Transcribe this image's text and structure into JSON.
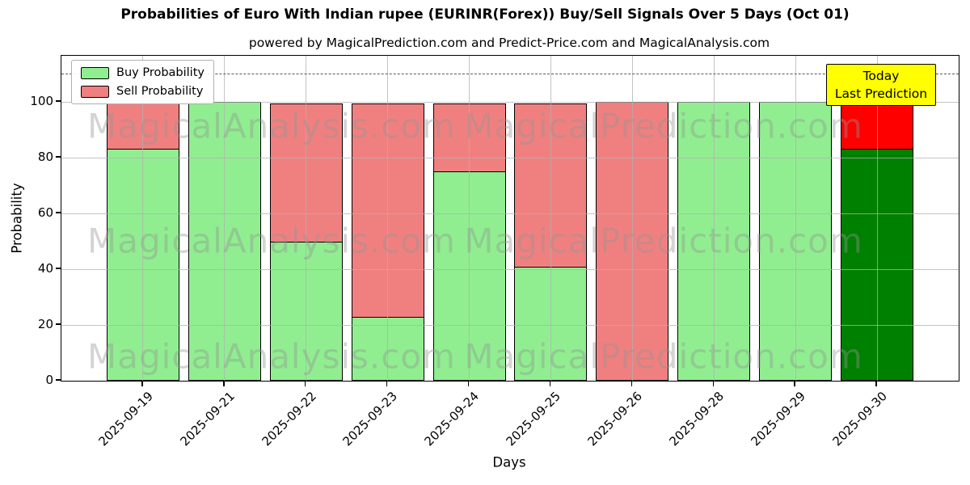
{
  "title": "Probabilities of Euro With Indian rupee (EURINR(Forex)) Buy/Sell Signals Over 5 Days (Oct 01)",
  "subtitle": "powered by MagicalPrediction.com and Predict-Price.com and MagicalAnalysis.com",
  "annotation": {
    "line1": "Today",
    "line2": "Last Prediction"
  },
  "watermarks": [
    "MagicalAnalysis.com",
    "MagicalPrediction.com"
  ],
  "colors": {
    "buy": "#90EE90",
    "sell": "#F08080",
    "today_buy": "#008000",
    "today_sell": "#FF0000",
    "annotation_bg": "#FFFF00",
    "grid": "#B0B0B0",
    "edge": "#000000"
  },
  "chart_data": {
    "type": "bar",
    "stacked": true,
    "title": "Probabilities of Euro With Indian rupee (EURINR(Forex)) Buy/Sell Signals Over 5 Days (Oct 01)",
    "xlabel": "Days",
    "ylabel": "Probability",
    "categories": [
      "2025-09-19",
      "2025-09-21",
      "2025-09-22",
      "2025-09-23",
      "2025-09-24",
      "2025-09-25",
      "2025-09-26",
      "2025-09-28",
      "2025-09-29",
      "2025-09-30"
    ],
    "series": [
      {
        "name": "Buy Probability",
        "color": "#90EE90",
        "values": [
          83.33,
          100,
          50,
          23,
          75,
          41,
          0,
          100,
          100,
          83.33
        ]
      },
      {
        "name": "Sell Probability",
        "color": "#F08080",
        "values": [
          16.67,
          0,
          50,
          77,
          25,
          59,
          100,
          0,
          0,
          16.67
        ]
      }
    ],
    "today_index": 9,
    "yticks": [
      0,
      20,
      40,
      60,
      80,
      100
    ],
    "ylim": [
      0,
      116.6
    ],
    "dashed_line_y": 110,
    "grid": true,
    "legend_position": "upper left"
  }
}
